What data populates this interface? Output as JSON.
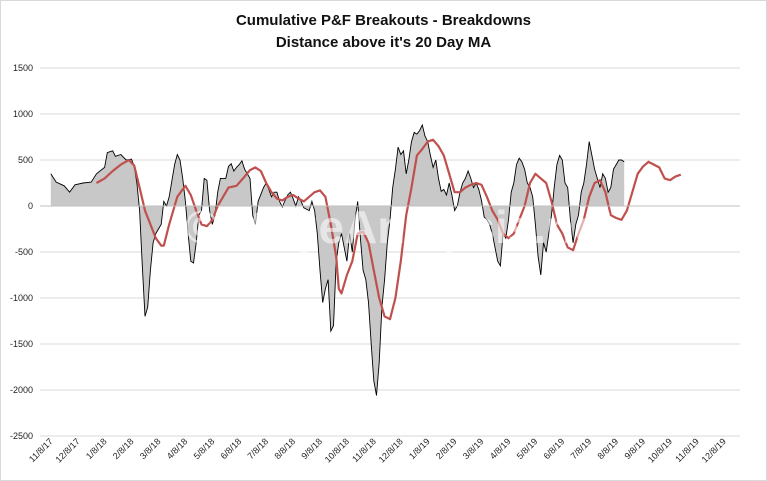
{
  "chart_data": {
    "type": "area",
    "title": "Cumulative P&F Breakouts - Breakdowns",
    "subtitle": "Distance above it's 20 Day MA",
    "watermark": "©StageAnalysis.net",
    "xlabel": "",
    "ylabel": "",
    "ylim": [
      -2500,
      1500
    ],
    "y_ticks": [
      1500,
      1000,
      500,
      0,
      -500,
      -1000,
      -1500,
      -2000,
      -2500
    ],
    "x_tick_labels": [
      "11/8/17",
      "12/8/17",
      "1/8/18",
      "2/8/18",
      "3/8/18",
      "4/8/18",
      "5/8/18",
      "6/8/18",
      "7/8/18",
      "8/8/18",
      "9/8/18",
      "10/8/18",
      "11/8/18",
      "12/8/18",
      "1/8/19",
      "2/8/19",
      "3/8/19",
      "4/8/19",
      "5/8/19",
      "6/8/19",
      "7/8/19",
      "8/8/19",
      "9/8/19",
      "10/8/19",
      "11/8/19",
      "12/8/19"
    ],
    "grid": true,
    "colors": {
      "area_fill": "#c8c8c8",
      "area_line": "#000000",
      "ma_line": "#c0504d",
      "grid": "#d9d9d9"
    },
    "series": [
      {
        "name": "",
        "style": "area",
        "points": [
          [
            0.4,
            350
          ],
          [
            0.6,
            260
          ],
          [
            0.9,
            220
          ],
          [
            1.1,
            150
          ],
          [
            1.3,
            230
          ],
          [
            1.6,
            250
          ],
          [
            1.9,
            260
          ],
          [
            2.1,
            350
          ],
          [
            2.4,
            420
          ],
          [
            2.5,
            580
          ],
          [
            2.7,
            600
          ],
          [
            2.8,
            540
          ],
          [
            3.0,
            560
          ],
          [
            3.2,
            500
          ],
          [
            3.4,
            510
          ],
          [
            3.5,
            430
          ],
          [
            3.6,
            250
          ],
          [
            3.7,
            -50
          ],
          [
            3.8,
            -650
          ],
          [
            3.9,
            -1200
          ],
          [
            4.0,
            -1100
          ],
          [
            4.1,
            -700
          ],
          [
            4.2,
            -400
          ],
          [
            4.3,
            -300
          ],
          [
            4.5,
            -200
          ],
          [
            4.6,
            50
          ],
          [
            4.7,
            0
          ],
          [
            4.8,
            100
          ],
          [
            5.0,
            450
          ],
          [
            5.1,
            560
          ],
          [
            5.2,
            500
          ],
          [
            5.3,
            300
          ],
          [
            5.4,
            50
          ],
          [
            5.5,
            -300
          ],
          [
            5.6,
            -600
          ],
          [
            5.7,
            -620
          ],
          [
            5.8,
            -400
          ],
          [
            5.9,
            -100
          ],
          [
            6.0,
            -50
          ],
          [
            6.1,
            300
          ],
          [
            6.2,
            280
          ],
          [
            6.3,
            -50
          ],
          [
            6.4,
            -200
          ],
          [
            6.5,
            -100
          ],
          [
            6.6,
            150
          ],
          [
            6.7,
            300
          ],
          [
            6.9,
            300
          ],
          [
            7.0,
            430
          ],
          [
            7.1,
            460
          ],
          [
            7.2,
            380
          ],
          [
            7.3,
            420
          ],
          [
            7.4,
            450
          ],
          [
            7.5,
            490
          ],
          [
            7.6,
            400
          ],
          [
            7.8,
            300
          ],
          [
            7.9,
            -100
          ],
          [
            8.0,
            -200
          ],
          [
            8.1,
            50
          ],
          [
            8.3,
            200
          ],
          [
            8.4,
            250
          ],
          [
            8.5,
            180
          ],
          [
            8.6,
            100
          ],
          [
            8.7,
            150
          ],
          [
            8.8,
            150
          ],
          [
            8.9,
            50
          ],
          [
            9.0,
            -10
          ],
          [
            9.1,
            60
          ],
          [
            9.2,
            120
          ],
          [
            9.3,
            150
          ],
          [
            9.4,
            80
          ],
          [
            9.5,
            0
          ],
          [
            9.6,
            100
          ],
          [
            9.7,
            50
          ],
          [
            9.8,
            -20
          ],
          [
            10.0,
            -50
          ],
          [
            10.1,
            50
          ],
          [
            10.2,
            -50
          ],
          [
            10.3,
            -300
          ],
          [
            10.4,
            -700
          ],
          [
            10.5,
            -1050
          ],
          [
            10.6,
            -900
          ],
          [
            10.7,
            -800
          ],
          [
            10.8,
            -1360
          ],
          [
            10.9,
            -1300
          ],
          [
            11.0,
            -600
          ],
          [
            11.1,
            -400
          ],
          [
            11.2,
            -300
          ],
          [
            11.3,
            -450
          ],
          [
            11.4,
            -600
          ],
          [
            11.5,
            -300
          ],
          [
            11.6,
            -500
          ],
          [
            11.7,
            -150
          ],
          [
            11.8,
            50
          ],
          [
            11.9,
            -350
          ],
          [
            12.0,
            -700
          ],
          [
            12.1,
            -800
          ],
          [
            12.2,
            -1050
          ],
          [
            12.3,
            -1500
          ],
          [
            12.4,
            -1900
          ],
          [
            12.5,
            -2060
          ],
          [
            12.6,
            -1700
          ],
          [
            12.7,
            -1100
          ],
          [
            12.8,
            -800
          ],
          [
            12.9,
            -400
          ],
          [
            13.0,
            -150
          ],
          [
            13.1,
            200
          ],
          [
            13.2,
            400
          ],
          [
            13.3,
            640
          ],
          [
            13.4,
            560
          ],
          [
            13.5,
            600
          ],
          [
            13.6,
            350
          ],
          [
            13.7,
            500
          ],
          [
            13.8,
            700
          ],
          [
            13.9,
            800
          ],
          [
            14.0,
            780
          ],
          [
            14.1,
            820
          ],
          [
            14.2,
            880
          ],
          [
            14.3,
            760
          ],
          [
            14.4,
            700
          ],
          [
            14.5,
            550
          ],
          [
            14.6,
            420
          ],
          [
            14.7,
            500
          ],
          [
            14.8,
            300
          ],
          [
            14.9,
            160
          ],
          [
            15.0,
            180
          ],
          [
            15.1,
            120
          ],
          [
            15.2,
            250
          ],
          [
            15.3,
            120
          ],
          [
            15.4,
            -50
          ],
          [
            15.5,
            0
          ],
          [
            15.6,
            150
          ],
          [
            15.7,
            250
          ],
          [
            15.8,
            300
          ],
          [
            15.9,
            380
          ],
          [
            16.0,
            300
          ],
          [
            16.1,
            200
          ],
          [
            16.2,
            250
          ],
          [
            16.3,
            180
          ],
          [
            16.4,
            60
          ],
          [
            16.5,
            -120
          ],
          [
            16.6,
            -150
          ],
          [
            16.7,
            -200
          ],
          [
            16.8,
            -300
          ],
          [
            16.9,
            -450
          ],
          [
            17.0,
            -600
          ],
          [
            17.1,
            -650
          ],
          [
            17.2,
            -300
          ],
          [
            17.3,
            -350
          ],
          [
            17.4,
            -150
          ],
          [
            17.5,
            150
          ],
          [
            17.6,
            250
          ],
          [
            17.7,
            450
          ],
          [
            17.8,
            520
          ],
          [
            17.9,
            480
          ],
          [
            18.0,
            400
          ],
          [
            18.1,
            250
          ],
          [
            18.2,
            200
          ],
          [
            18.3,
            100
          ],
          [
            18.4,
            -200
          ],
          [
            18.5,
            -550
          ],
          [
            18.6,
            -750
          ],
          [
            18.7,
            -400
          ],
          [
            18.8,
            -500
          ],
          [
            18.9,
            -300
          ],
          [
            19.0,
            -100
          ],
          [
            19.1,
            200
          ],
          [
            19.2,
            450
          ],
          [
            19.3,
            550
          ],
          [
            19.4,
            500
          ],
          [
            19.5,
            250
          ],
          [
            19.6,
            200
          ],
          [
            19.7,
            -150
          ],
          [
            19.8,
            -400
          ],
          [
            19.9,
            -200
          ],
          [
            20.0,
            -100
          ],
          [
            20.1,
            150
          ],
          [
            20.2,
            250
          ],
          [
            20.3,
            450
          ],
          [
            20.4,
            700
          ],
          [
            20.5,
            550
          ],
          [
            20.6,
            400
          ],
          [
            20.7,
            300
          ],
          [
            20.8,
            200
          ],
          [
            20.9,
            350
          ],
          [
            21.0,
            300
          ],
          [
            21.1,
            150
          ],
          [
            21.2,
            200
          ],
          [
            21.3,
            400
          ],
          [
            21.4,
            450
          ],
          [
            21.5,
            500
          ],
          [
            21.6,
            500
          ],
          [
            21.7,
            480
          ]
        ]
      },
      {
        "name": "",
        "style": "line",
        "points": [
          [
            2.1,
            250
          ],
          [
            2.4,
            300
          ],
          [
            2.7,
            380
          ],
          [
            3.0,
            450
          ],
          [
            3.3,
            500
          ],
          [
            3.5,
            440
          ],
          [
            3.7,
            200
          ],
          [
            3.9,
            -50
          ],
          [
            4.1,
            -200
          ],
          [
            4.3,
            -350
          ],
          [
            4.5,
            -430
          ],
          [
            4.6,
            -430
          ],
          [
            4.8,
            -200
          ],
          [
            5.0,
            0
          ],
          [
            5.1,
            100
          ],
          [
            5.3,
            180
          ],
          [
            5.4,
            220
          ],
          [
            5.6,
            120
          ],
          [
            5.8,
            -50
          ],
          [
            6.0,
            -200
          ],
          [
            6.2,
            -220
          ],
          [
            6.4,
            -150
          ],
          [
            6.6,
            0
          ],
          [
            6.8,
            100
          ],
          [
            7.0,
            200
          ],
          [
            7.3,
            220
          ],
          [
            7.6,
            320
          ],
          [
            7.8,
            390
          ],
          [
            8.0,
            420
          ],
          [
            8.2,
            380
          ],
          [
            8.4,
            250
          ],
          [
            8.6,
            150
          ],
          [
            8.8,
            80
          ],
          [
            9.0,
            60
          ],
          [
            9.2,
            100
          ],
          [
            9.4,
            120
          ],
          [
            9.6,
            80
          ],
          [
            9.8,
            50
          ],
          [
            10.0,
            100
          ],
          [
            10.2,
            150
          ],
          [
            10.4,
            170
          ],
          [
            10.6,
            100
          ],
          [
            10.8,
            -200
          ],
          [
            11.0,
            -550
          ],
          [
            11.1,
            -900
          ],
          [
            11.2,
            -950
          ],
          [
            11.4,
            -750
          ],
          [
            11.6,
            -600
          ],
          [
            11.8,
            -300
          ],
          [
            12.0,
            -280
          ],
          [
            12.2,
            -400
          ],
          [
            12.4,
            -700
          ],
          [
            12.6,
            -1000
          ],
          [
            12.8,
            -1200
          ],
          [
            13.0,
            -1230
          ],
          [
            13.2,
            -1000
          ],
          [
            13.4,
            -600
          ],
          [
            13.6,
            -100
          ],
          [
            13.8,
            200
          ],
          [
            14.0,
            550
          ],
          [
            14.2,
            620
          ],
          [
            14.4,
            700
          ],
          [
            14.6,
            720
          ],
          [
            14.8,
            650
          ],
          [
            15.0,
            550
          ],
          [
            15.2,
            350
          ],
          [
            15.4,
            150
          ],
          [
            15.6,
            150
          ],
          [
            15.8,
            200
          ],
          [
            16.0,
            230
          ],
          [
            16.2,
            250
          ],
          [
            16.4,
            230
          ],
          [
            16.6,
            100
          ],
          [
            16.8,
            -50
          ],
          [
            17.0,
            -150
          ],
          [
            17.2,
            -300
          ],
          [
            17.4,
            -350
          ],
          [
            17.6,
            -300
          ],
          [
            17.8,
            -150
          ],
          [
            18.0,
            0
          ],
          [
            18.2,
            250
          ],
          [
            18.4,
            350
          ],
          [
            18.6,
            300
          ],
          [
            18.8,
            250
          ],
          [
            19.0,
            50
          ],
          [
            19.2,
            -200
          ],
          [
            19.4,
            -300
          ],
          [
            19.6,
            -450
          ],
          [
            19.8,
            -480
          ],
          [
            20.0,
            -300
          ],
          [
            20.2,
            -150
          ],
          [
            20.4,
            100
          ],
          [
            20.6,
            250
          ],
          [
            20.8,
            280
          ],
          [
            21.0,
            150
          ],
          [
            21.2,
            -100
          ],
          [
            21.4,
            -130
          ],
          [
            21.6,
            -150
          ],
          [
            21.8,
            -50
          ],
          [
            22.0,
            150
          ],
          [
            22.2,
            350
          ],
          [
            22.4,
            430
          ],
          [
            22.6,
            480
          ],
          [
            22.8,
            450
          ],
          [
            23.0,
            420
          ],
          [
            23.2,
            300
          ],
          [
            23.4,
            280
          ],
          [
            23.6,
            320
          ],
          [
            23.8,
            340
          ]
        ]
      }
    ]
  }
}
